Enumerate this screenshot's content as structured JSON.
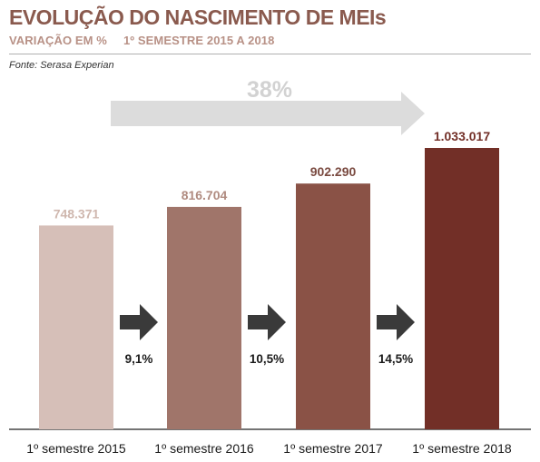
{
  "header": {
    "title": "EVOLUÇÃO DO NASCIMENTO DE MEIs",
    "subtitle_left": "VARIAÇÃO EM %",
    "subtitle_right": "1º SEMESTRE 2015 A 2018",
    "source": "Fonte: Serasa Experian"
  },
  "chart_data": {
    "type": "bar",
    "categories": [
      "1º semestre 2015",
      "1º semestre 2016",
      "1º semestre 2017",
      "1º semestre 2018"
    ],
    "values": [
      748371,
      816704,
      902290,
      1033017
    ],
    "value_labels": [
      "748.371",
      "816.704",
      "902.290",
      "1.033.017"
    ],
    "bar_colors": [
      "#d6bfb8",
      "#a0756a",
      "#8a5246",
      "#722f27"
    ],
    "label_colors": [
      "#cfb7ae",
      "#b08b80",
      "#7a4a40",
      "#722f27"
    ],
    "growth": [
      "9,1%",
      "10,5%",
      "14,5%"
    ],
    "total_growth": "38%",
    "grid": false,
    "legend": "none"
  }
}
